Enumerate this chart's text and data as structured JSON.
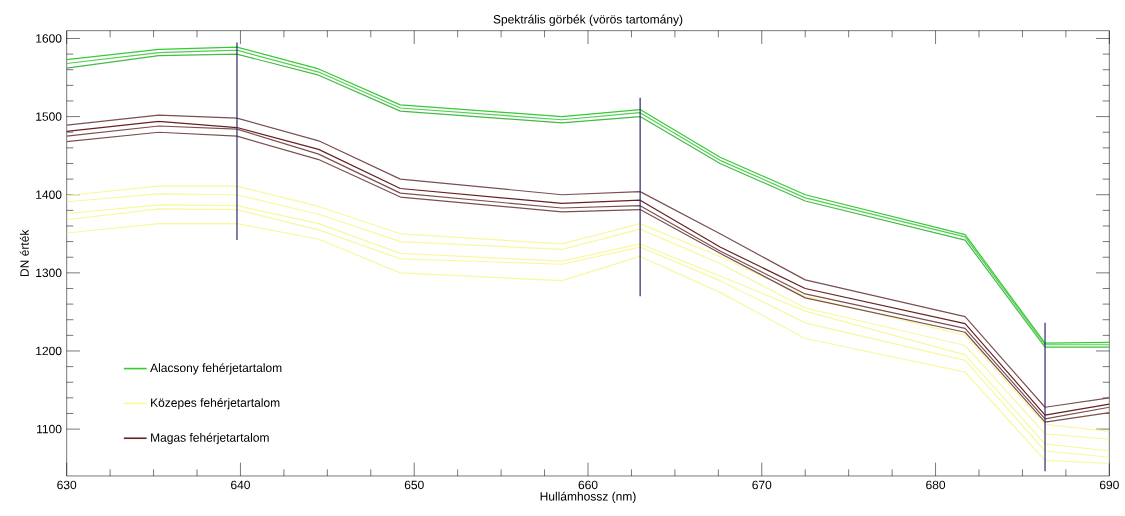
{
  "chart_data": {
    "type": "line",
    "title": "Spektrális görbék (vörös tartomány)",
    "xlabel": "Hullámhossz (nm)",
    "ylabel": "DN érték",
    "x": [
      630,
      635.3,
      639.8,
      644.5,
      649.2,
      658.5,
      663,
      667.6,
      672.5,
      681.7,
      686.3,
      690
    ],
    "xlim": [
      630,
      690
    ],
    "ylim": [
      1040,
      1610
    ],
    "xticks": [
      630,
      640,
      650,
      660,
      670,
      680,
      690
    ],
    "yticks": [
      1100,
      1200,
      1300,
      1400,
      1500,
      1600
    ],
    "marker": "none",
    "grid": false,
    "legend": "bottom left",
    "series": [
      {
        "name": "Alacsony fehérjetartalom",
        "color": "#33cc33",
        "values": [
          1573,
          1586,
          1589,
          1561,
          1515,
          1500,
          1509,
          1448,
          1400,
          1349,
          1210,
          1211
        ]
      },
      {
        "color": "#55cc55",
        "values": [
          1568,
          1582,
          1585,
          1557,
          1511,
          1496,
          1505,
          1444,
          1396,
          1346,
          1208,
          1208
        ]
      },
      {
        "color": "#44bb44",
        "values": [
          1562,
          1578,
          1580,
          1553,
          1507,
          1492,
          1500,
          1440,
          1392,
          1342,
          1205,
          1205
        ]
      },
      {
        "name": "Közepes fehérjetartalom",
        "color": "#f8f8a0",
        "values": [
          1399,
          1411,
          1411,
          1385,
          1350,
          1337,
          1363,
          1321,
          1270,
          1220,
          1106,
          1097
        ]
      },
      {
        "color": "#f8f8a0",
        "values": [
          1391,
          1401,
          1400,
          1375,
          1340,
          1330,
          1356,
          1312,
          1255,
          1207,
          1094,
          1087
        ]
      },
      {
        "color": "#f8f8a0",
        "values": [
          1376,
          1387,
          1386,
          1363,
          1325,
          1315,
          1337,
          1296,
          1251,
          1195,
          1081,
          1072
        ]
      },
      {
        "color": "#f8f8a0",
        "values": [
          1368,
          1382,
          1381,
          1355,
          1318,
          1311,
          1333,
          1290,
          1236,
          1188,
          1072,
          1064
        ]
      },
      {
        "color": "#f8f8a0",
        "values": [
          1351,
          1363,
          1363,
          1343,
          1300,
          1290,
          1321,
          1275,
          1216,
          1173,
          1060,
          1056
        ]
      },
      {
        "name": "Magas fehérjetartalom",
        "color": "#6b2020",
        "values": [
          1481,
          1494,
          1486,
          1458,
          1408,
          1389,
          1393,
          1333,
          1280,
          1235,
          1118,
          1132
        ]
      },
      {
        "color": "#7a5050",
        "values": [
          1489,
          1502,
          1498,
          1469,
          1420,
          1400,
          1404,
          1350,
          1291,
          1244,
          1128,
          1140
        ]
      },
      {
        "color": "#7a5050",
        "values": [
          1475,
          1488,
          1484,
          1452,
          1402,
          1383,
          1386,
          1328,
          1273,
          1229,
          1113,
          1128
        ]
      },
      {
        "color": "#7a5050",
        "values": [
          1468,
          1480,
          1475,
          1445,
          1397,
          1378,
          1381,
          1325,
          1268,
          1224,
          1109,
          1121
        ]
      },
      {
        "type": "line",
        "color": "#2a2a6a",
        "x": [
          639.8,
          639.8
        ],
        "values": [
          1342,
          1595
        ]
      },
      {
        "type": "line",
        "color": "#2a2a6a",
        "x": [
          663,
          663
        ],
        "values": [
          1270,
          1524
        ]
      },
      {
        "type": "line",
        "color": "#2a2a6a",
        "x": [
          686.3,
          686.3
        ],
        "values": [
          1046,
          1236
        ]
      }
    ]
  }
}
